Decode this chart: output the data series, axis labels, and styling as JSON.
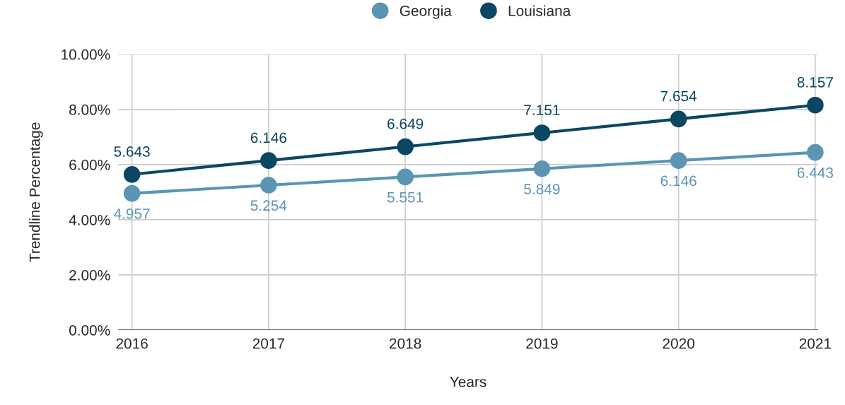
{
  "chart_data": {
    "type": "line",
    "xlabel": "Years",
    "ylabel": "Trendline Percentage",
    "categories": [
      "2016",
      "2017",
      "2018",
      "2019",
      "2020",
      "2021"
    ],
    "series": [
      {
        "name": "Georgia",
        "color": "#5b95b3",
        "values": [
          4.957,
          5.254,
          5.551,
          5.849,
          6.146,
          6.443
        ]
      },
      {
        "name": "Louisiana",
        "color": "#0b4762",
        "values": [
          5.643,
          6.146,
          6.649,
          7.151,
          7.654,
          8.157
        ]
      }
    ],
    "ylim": [
      0,
      10
    ],
    "yticks": [
      {
        "value": 0,
        "label": "0.00%"
      },
      {
        "value": 2,
        "label": "2.00%"
      },
      {
        "value": 4,
        "label": "4.00%"
      },
      {
        "value": 6,
        "label": "6.00%"
      },
      {
        "value": 8,
        "label": "8.00%"
      },
      {
        "value": 10,
        "label": "10.00%"
      }
    ],
    "data_labels": true,
    "grid": true,
    "legend": "top",
    "marker": "circle",
    "line_style": "solid"
  }
}
